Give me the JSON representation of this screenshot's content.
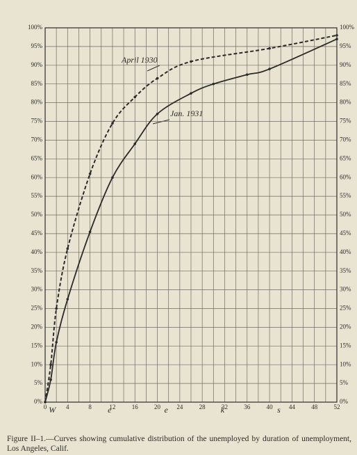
{
  "chart_data": {
    "type": "line",
    "xlabel": "Weeks",
    "caption": "Figure II–1.—Curves showing cumulative distribution of the unemployed by duration of unemployment, Los Angeles, Calif.",
    "annotations": [
      "April 1930",
      "Jan. 1931"
    ],
    "series": [
      {
        "name": "April 1930",
        "color": "#2b2a28",
        "dashed": true,
        "x": [
          0,
          1,
          2,
          4,
          8,
          12,
          16,
          20,
          26,
          40,
          52
        ],
        "values": [
          0,
          10,
          25,
          41,
          61,
          74.5,
          81.5,
          86.5,
          91,
          94.5,
          98
        ]
      },
      {
        "name": "Jan. 1931",
        "color": "#2b2a28",
        "dashed": false,
        "x": [
          0,
          1,
          2,
          4,
          8,
          12,
          16,
          20,
          26,
          30,
          36,
          40,
          52
        ],
        "values": [
          0,
          6,
          16,
          27.5,
          45.5,
          60,
          69,
          77,
          82.5,
          85,
          87.5,
          89,
          97
        ]
      }
    ],
    "xlim": [
      0,
      52
    ],
    "xticks": [
      0,
      4,
      8,
      12,
      16,
      20,
      24,
      28,
      32,
      36,
      40,
      44,
      48,
      52
    ],
    "ylim": [
      0,
      100
    ],
    "yticks": [
      {
        "value": 0,
        "label": "0%"
      },
      {
        "value": 5,
        "label": "5%"
      },
      {
        "value": 10,
        "label": "10%"
      },
      {
        "value": 15,
        "label": "15%"
      },
      {
        "value": 20,
        "label": "20%"
      },
      {
        "value": 25,
        "label": "25%"
      },
      {
        "value": 30,
        "label": "30%"
      },
      {
        "value": 35,
        "label": "35%"
      },
      {
        "value": 40,
        "label": "40%"
      },
      {
        "value": 45,
        "label": "45%"
      },
      {
        "value": 50,
        "label": "50%"
      },
      {
        "value": 55,
        "label": "55%"
      },
      {
        "value": 60,
        "label": "60%"
      },
      {
        "value": 65,
        "label": "65%"
      },
      {
        "value": 70,
        "label": "70%"
      },
      {
        "value": 75,
        "label": "75%"
      },
      {
        "value": 80,
        "label": "80%"
      },
      {
        "value": 85,
        "label": "85%"
      },
      {
        "value": 90,
        "label": "90%"
      },
      {
        "value": 95,
        "label": "95%"
      },
      {
        "value": 100,
        "label": "100%"
      }
    ],
    "grid": true
  }
}
